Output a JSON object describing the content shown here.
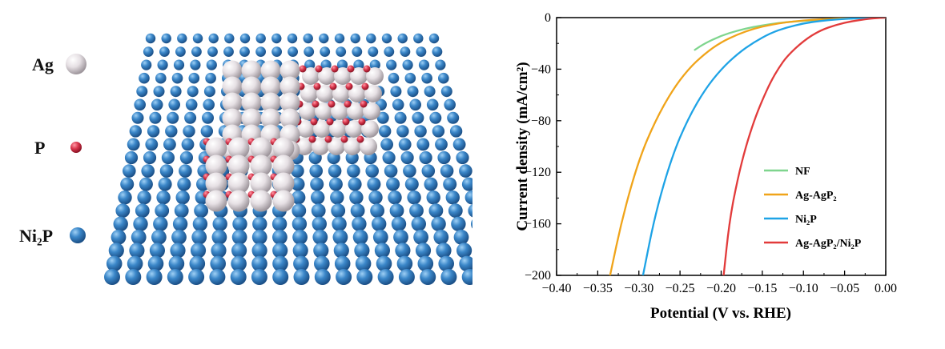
{
  "model_legend": [
    {
      "label": "Ag",
      "color": "#ece6ea"
    },
    {
      "label": "P",
      "color": "#d8384e"
    },
    {
      "label": "Ni₂P",
      "color": "#3a82c4"
    }
  ],
  "chart_data": {
    "type": "line",
    "xlabel": "Potential (V vs. RHE)",
    "ylabel": "Current density (mA/cm²)",
    "xlim": [
      -0.4,
      0.0
    ],
    "ylim": [
      -200,
      0
    ],
    "xticks": [
      "−0.40",
      "−0.35",
      "−0.30",
      "−0.25",
      "−0.20",
      "−0.15",
      "−0.10",
      "−0.05",
      "0.00"
    ],
    "yticks": [
      "0",
      "−40",
      "−80",
      "−120",
      "−160",
      "−200"
    ],
    "legend_position": "bottom-right",
    "series": [
      {
        "name": "NF",
        "color": "#7fd58e",
        "x": [
          -0.232,
          -0.22,
          -0.2,
          -0.18,
          -0.16,
          -0.14,
          -0.12,
          -0.1,
          -0.08,
          -0.06,
          -0.04,
          -0.02,
          0.0
        ],
        "y": [
          -25,
          -20,
          -14,
          -10,
          -7,
          -5,
          -3.5,
          -2.5,
          -1.8,
          -1.2,
          -0.7,
          -0.3,
          0
        ]
      },
      {
        "name": "Ag-AgP₂",
        "color": "#f0a41a",
        "x": [
          -0.335,
          -0.32,
          -0.3,
          -0.28,
          -0.26,
          -0.24,
          -0.22,
          -0.2,
          -0.18,
          -0.16,
          -0.14,
          -0.12,
          -0.1,
          -0.08,
          -0.06,
          -0.04,
          -0.02,
          0.0
        ],
        "y": [
          -200,
          -155,
          -110,
          -80,
          -57,
          -40,
          -28,
          -19,
          -13,
          -8.5,
          -5.5,
          -3.5,
          -2.2,
          -1.4,
          -0.8,
          -0.4,
          -0.15,
          0
        ]
      },
      {
        "name": "Ni₂P",
        "color": "#1ea3e6",
        "x": [
          -0.295,
          -0.28,
          -0.26,
          -0.24,
          -0.22,
          -0.2,
          -0.18,
          -0.16,
          -0.14,
          -0.12,
          -0.1,
          -0.08,
          -0.06,
          -0.04,
          -0.02,
          0.0
        ],
        "y": [
          -200,
          -152,
          -108,
          -78,
          -56,
          -40,
          -28,
          -19,
          -12,
          -7.5,
          -4.5,
          -2.6,
          -1.4,
          -0.6,
          -0.2,
          0
        ]
      },
      {
        "name": "Ag-AgP₂/Ni₂P",
        "color": "#e23b3b",
        "x": [
          -0.197,
          -0.19,
          -0.18,
          -0.17,
          -0.16,
          -0.15,
          -0.14,
          -0.13,
          -0.12,
          -0.1,
          -0.08,
          -0.06,
          -0.04,
          -0.02,
          -0.01,
          0.0
        ],
        "y": [
          -200,
          -158,
          -125,
          -100,
          -80,
          -64,
          -50,
          -39,
          -30,
          -18,
          -10,
          -5.5,
          -2.6,
          -0.9,
          -0.3,
          0
        ]
      }
    ]
  }
}
